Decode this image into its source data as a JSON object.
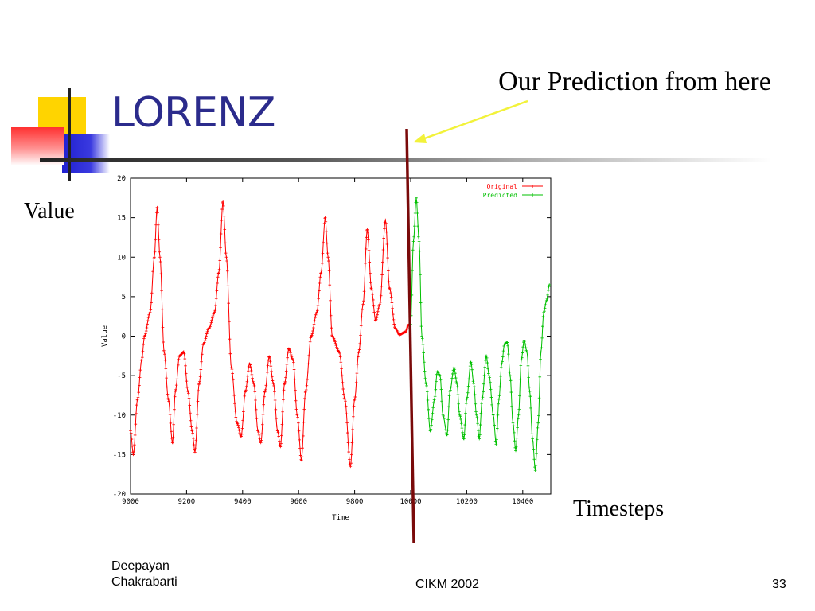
{
  "slide": {
    "title": "LORENZ",
    "annotation": "Our Prediction from here",
    "value_label": "Value",
    "timesteps_label": "Timesteps"
  },
  "footer": {
    "author_line1": "Deepayan",
    "author_line2": "Chakrabarti",
    "conference": "CIKM 2002",
    "page_number": "33"
  },
  "colors": {
    "title": "#2b2b8c",
    "original": "#ff0000",
    "predicted": "#00c000",
    "divider": "#7a0a0a",
    "arrow": "#f2f23a"
  },
  "chart_data": {
    "type": "line",
    "xlabel": "Time",
    "ylabel": "Value",
    "xlim": [
      9000,
      10500
    ],
    "ylim": [
      -20,
      20
    ],
    "x_ticks": [
      9000,
      9200,
      9400,
      9600,
      9800,
      10000,
      10200,
      10400
    ],
    "y_ticks": [
      20,
      15,
      10,
      5,
      0,
      -5,
      -10,
      -15,
      -20
    ],
    "legend_position": "top-right",
    "prediction_start": 10000,
    "series": [
      {
        "name": "Original",
        "color": "#ff0000",
        "points": [
          [
            9000,
            -12
          ],
          [
            9010,
            -15
          ],
          [
            9025,
            -8
          ],
          [
            9040,
            -3
          ],
          [
            9050,
            0
          ],
          [
            9070,
            3
          ],
          [
            9085,
            10
          ],
          [
            9095,
            16.3
          ],
          [
            9105,
            10
          ],
          [
            9120,
            -2
          ],
          [
            9135,
            -8
          ],
          [
            9150,
            -13.5
          ],
          [
            9160,
            -7
          ],
          [
            9175,
            -2.5
          ],
          [
            9190,
            -2
          ],
          [
            9205,
            -7
          ],
          [
            9220,
            -12
          ],
          [
            9230,
            -14.7
          ],
          [
            9245,
            -6
          ],
          [
            9260,
            -1
          ],
          [
            9280,
            1
          ],
          [
            9300,
            3
          ],
          [
            9315,
            8
          ],
          [
            9330,
            17
          ],
          [
            9342,
            10
          ],
          [
            9360,
            -4
          ],
          [
            9380,
            -11
          ],
          [
            9395,
            -12.7
          ],
          [
            9410,
            -7
          ],
          [
            9425,
            -3.5
          ],
          [
            9440,
            -6
          ],
          [
            9455,
            -12
          ],
          [
            9465,
            -13.5
          ],
          [
            9480,
            -7
          ],
          [
            9495,
            -2.6
          ],
          [
            9510,
            -6
          ],
          [
            9525,
            -12
          ],
          [
            9535,
            -14
          ],
          [
            9550,
            -6
          ],
          [
            9565,
            -1.6
          ],
          [
            9580,
            -3
          ],
          [
            9595,
            -10
          ],
          [
            9610,
            -15.7
          ],
          [
            9625,
            -7
          ],
          [
            9645,
            0
          ],
          [
            9665,
            3
          ],
          [
            9680,
            8
          ],
          [
            9695,
            15
          ],
          [
            9705,
            10
          ],
          [
            9720,
            0
          ],
          [
            9745,
            -2
          ],
          [
            9765,
            -8
          ],
          [
            9785,
            -16.5
          ],
          [
            9800,
            -8
          ],
          [
            9815,
            -2
          ],
          [
            9830,
            4
          ],
          [
            9845,
            13.5
          ],
          [
            9860,
            6
          ],
          [
            9875,
            2
          ],
          [
            9890,
            4
          ],
          [
            9910,
            14.7
          ],
          [
            9925,
            6
          ],
          [
            9945,
            1
          ],
          [
            9960,
            0.2
          ],
          [
            9980,
            0.5
          ],
          [
            9995,
            1.5
          ]
        ]
      },
      {
        "name": "Predicted",
        "color": "#00c000",
        "points": [
          [
            10000,
            1.5
          ],
          [
            10010,
            12
          ],
          [
            10020,
            17.5
          ],
          [
            10030,
            12
          ],
          [
            10040,
            0
          ],
          [
            10055,
            -6
          ],
          [
            10070,
            -12
          ],
          [
            10085,
            -8
          ],
          [
            10095,
            -4.5
          ],
          [
            10105,
            -5
          ],
          [
            10115,
            -10
          ],
          [
            10130,
            -12.5
          ],
          [
            10140,
            -7
          ],
          [
            10155,
            -4
          ],
          [
            10165,
            -6
          ],
          [
            10175,
            -10
          ],
          [
            10190,
            -13
          ],
          [
            10200,
            -8
          ],
          [
            10215,
            -3.3
          ],
          [
            10225,
            -6
          ],
          [
            10235,
            -10
          ],
          [
            10245,
            -13
          ],
          [
            10255,
            -8
          ],
          [
            10270,
            -2.5
          ],
          [
            10280,
            -5
          ],
          [
            10295,
            -10
          ],
          [
            10305,
            -13.7
          ],
          [
            10315,
            -8
          ],
          [
            10325,
            -3.5
          ],
          [
            10335,
            -1
          ],
          [
            10345,
            -0.8
          ],
          [
            10355,
            -5
          ],
          [
            10365,
            -11
          ],
          [
            10375,
            -14.5
          ],
          [
            10385,
            -10
          ],
          [
            10395,
            -3
          ],
          [
            10405,
            -0.5
          ],
          [
            10415,
            -2
          ],
          [
            10425,
            -7
          ],
          [
            10435,
            -13
          ],
          [
            10445,
            -17
          ],
          [
            10455,
            -11
          ],
          [
            10465,
            -2
          ],
          [
            10475,
            3
          ],
          [
            10485,
            4.5
          ],
          [
            10495,
            6.5
          ]
        ]
      }
    ]
  }
}
